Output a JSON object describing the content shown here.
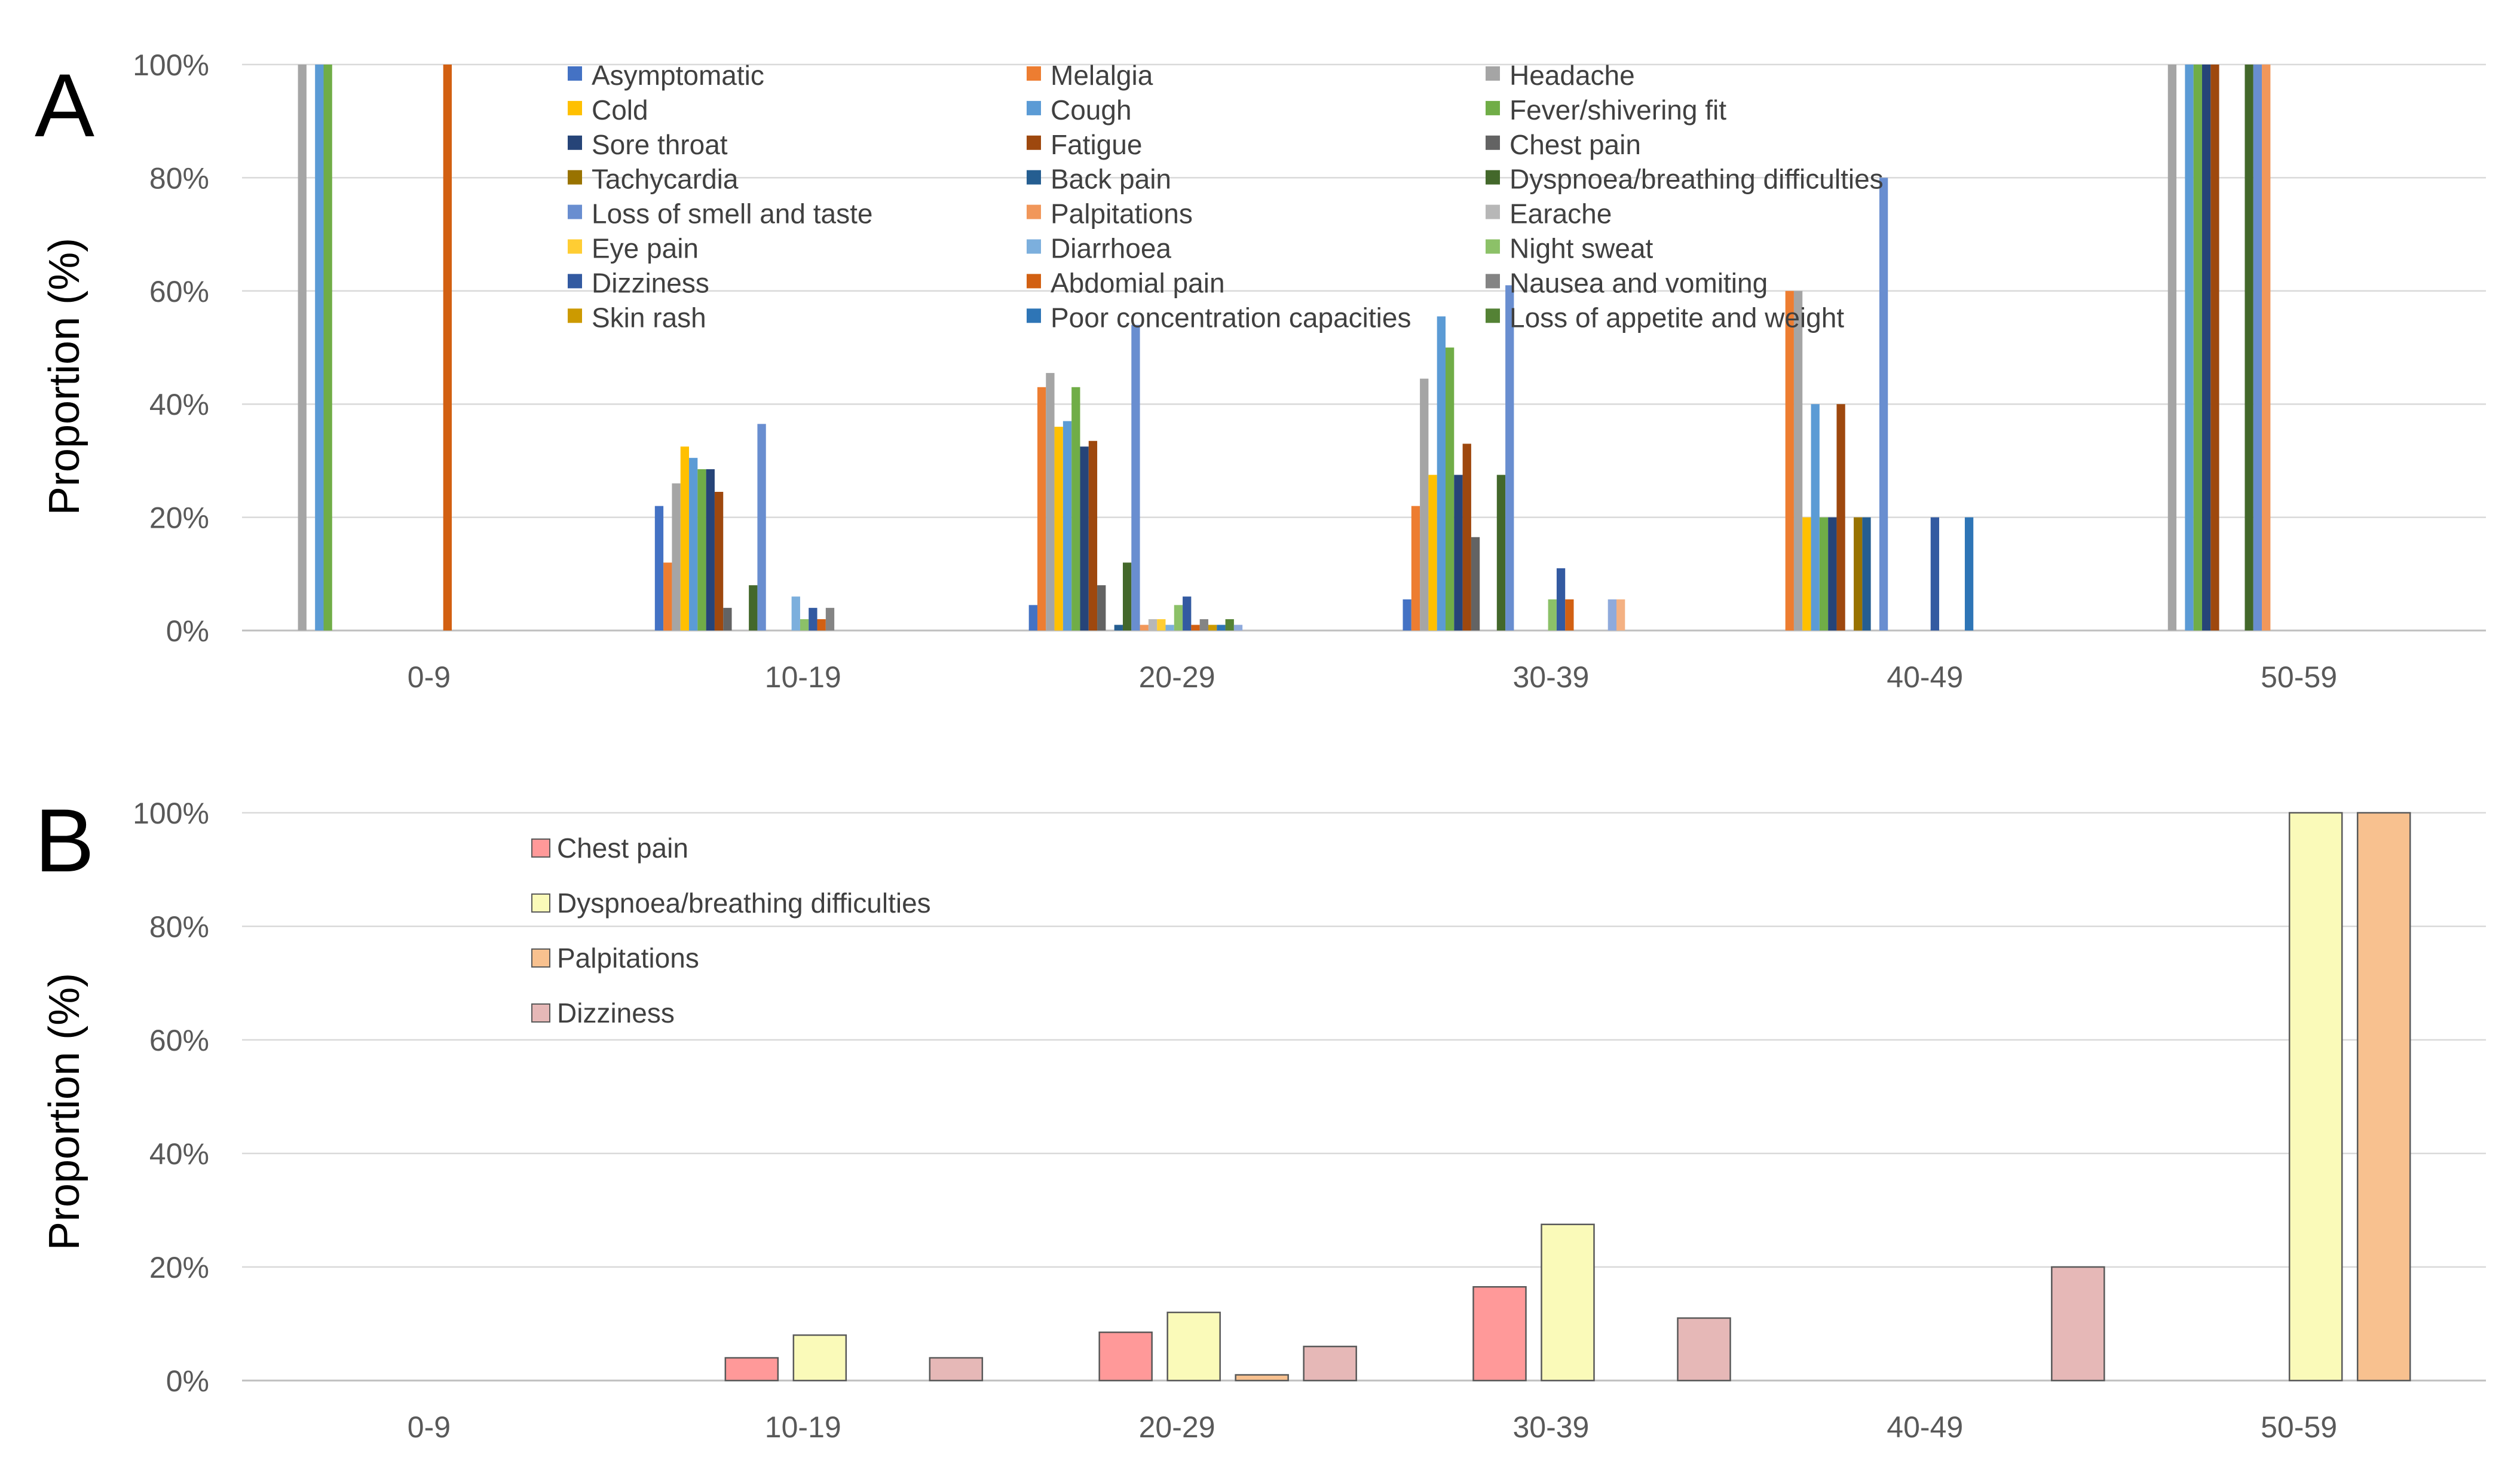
{
  "chart_data": [
    {
      "type": "bar",
      "panel_label": "A",
      "ylabel": "Proportion (%)",
      "ylim": [
        0,
        100
      ],
      "yticks": [
        "0%",
        "20%",
        "40%",
        "60%",
        "80%",
        "100%"
      ],
      "categories": [
        "0-9",
        "10-19",
        "20-29",
        "30-39",
        "40-49",
        "50-59"
      ],
      "legend_position": "top-center",
      "series": [
        {
          "name": "Asymptomatic",
          "color": "#4472C4",
          "values": [
            0,
            22,
            4.5,
            5.5,
            0,
            0
          ]
        },
        {
          "name": "Melalgia",
          "color": "#ED7D31",
          "values": [
            0,
            12,
            43,
            22,
            60,
            0
          ]
        },
        {
          "name": "Headache",
          "color": "#A5A5A5",
          "values": [
            100,
            26,
            45.5,
            44.5,
            60,
            100
          ]
        },
        {
          "name": "Cold",
          "color": "#FFC000",
          "values": [
            0,
            32.5,
            36,
            27.5,
            20,
            0
          ]
        },
        {
          "name": "Cough",
          "color": "#5B9BD5",
          "values": [
            100,
            30.5,
            37,
            55.5,
            40,
            100
          ]
        },
        {
          "name": "Fever/shivering fit",
          "color": "#70AD47",
          "values": [
            100,
            28.5,
            43,
            50,
            20,
            100
          ]
        },
        {
          "name": "Sore throat",
          "color": "#264478",
          "values": [
            0,
            28.5,
            32.5,
            27.5,
            20,
            100
          ]
        },
        {
          "name": "Fatigue",
          "color": "#9E480E",
          "values": [
            0,
            24.5,
            33.5,
            33,
            40,
            100
          ]
        },
        {
          "name": "Chest pain",
          "color": "#636363",
          "values": [
            0,
            4,
            8,
            16.5,
            0,
            0
          ]
        },
        {
          "name": "Tachycardia",
          "color": "#997300",
          "values": [
            0,
            0,
            0,
            0,
            20,
            0
          ]
        },
        {
          "name": "Back pain",
          "color": "#255E91",
          "values": [
            0,
            0,
            1,
            0,
            20,
            0
          ]
        },
        {
          "name": "Dyspnoea/breathing difficulties",
          "color": "#43682B",
          "values": [
            0,
            8,
            12,
            27.5,
            0,
            100
          ]
        },
        {
          "name": "Loss of smell and taste",
          "color": "#698ED0",
          "values": [
            0,
            36.5,
            54,
            61,
            80,
            100
          ]
        },
        {
          "name": "Palpitations",
          "color": "#F1975A",
          "values": [
            0,
            0,
            1,
            0,
            0,
            100
          ]
        },
        {
          "name": "Earache",
          "color": "#B7B7B7",
          "values": [
            0,
            0,
            2,
            0,
            0,
            0
          ]
        },
        {
          "name": "Eye pain",
          "color": "#FFCD33",
          "values": [
            0,
            0,
            2,
            0,
            0,
            0
          ]
        },
        {
          "name": "Diarrhoea",
          "color": "#7CAFDD",
          "values": [
            0,
            6,
            1,
            0,
            0,
            0
          ]
        },
        {
          "name": "Night sweat",
          "color": "#8CC168",
          "values": [
            0,
            2,
            4.5,
            5.5,
            0,
            0
          ]
        },
        {
          "name": "Dizziness",
          "color": "#335AA1",
          "values": [
            0,
            4,
            6,
            11,
            20,
            0
          ]
        },
        {
          "name": "Abdomial pain",
          "color": "#D26012",
          "values": [
            100,
            2,
            1,
            5.5,
            0,
            0
          ]
        },
        {
          "name": "Nausea and vomiting",
          "color": "#848484",
          "values": [
            0,
            4,
            2,
            0,
            0,
            0
          ]
        },
        {
          "name": "Skin rash",
          "color": "#CC9A00",
          "values": [
            0,
            0,
            1,
            0,
            0,
            0
          ]
        },
        {
          "name": "Poor concentration capacities",
          "color": "#2E75B6",
          "values": [
            0,
            0,
            1,
            0,
            20,
            0
          ]
        },
        {
          "name": "Loss of appetite and weight",
          "color": "#548235",
          "values": [
            0,
            0,
            2,
            0,
            0,
            0
          ]
        },
        {
          "name": "",
          "color": "#8FAADC",
          "values": [
            0,
            0,
            1,
            5.5,
            0,
            0
          ]
        },
        {
          "name": "",
          "color": "#F4B183",
          "values": [
            0,
            0,
            0,
            5.5,
            0,
            0
          ]
        }
      ]
    },
    {
      "type": "bar",
      "panel_label": "B",
      "ylabel": "Proportion (%)",
      "ylim": [
        0,
        100
      ],
      "yticks": [
        "0%",
        "20%",
        "40%",
        "60%",
        "80%",
        "100%"
      ],
      "categories": [
        "0-9",
        "10-19",
        "20-29",
        "30-39",
        "40-49",
        "50-59"
      ],
      "legend_position": "top-left",
      "series": [
        {
          "name": "Chest pain",
          "color": "#FF9999",
          "values": [
            0,
            4,
            8.5,
            16.5,
            0,
            0
          ]
        },
        {
          "name": "Dyspnoea/breathing difficulties",
          "color": "#FAFAB9",
          "values": [
            0,
            8,
            12,
            27.5,
            0,
            100
          ]
        },
        {
          "name": "Palpitations",
          "color": "#F8C18F",
          "values": [
            0,
            0,
            1,
            0,
            0,
            100
          ]
        },
        {
          "name": "Dizziness",
          "color": "#E6B8B7",
          "values": [
            0,
            4,
            6,
            11,
            20,
            0
          ]
        }
      ]
    }
  ]
}
